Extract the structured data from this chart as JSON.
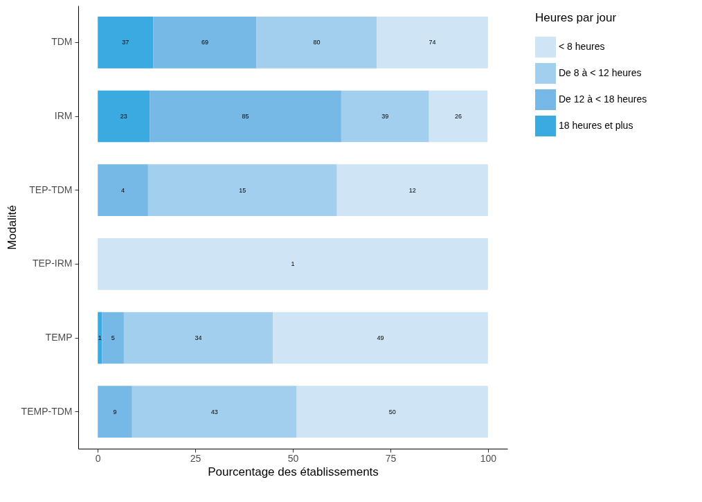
{
  "chart_data": {
    "type": "bar",
    "orientation": "horizontal",
    "stacked": true,
    "xlabel": "Pourcentage des établissements",
    "ylabel": "Modalité",
    "legend_title": "Heures par jour",
    "legend": "right",
    "grid": false,
    "categories": [
      "TDM",
      "IRM",
      "TEP-TDM",
      "TEP-IRM",
      "TEMP",
      "TEMP-TDM"
    ],
    "xlim": [
      -5,
      105
    ],
    "xticks": [
      0,
      25,
      50,
      75,
      100
    ],
    "series": [
      {
        "name": "18 heures et plus",
        "color": "#3aaae0",
        "values": [
          14.2,
          13.3,
          null,
          null,
          1.1,
          null
        ]
      },
      {
        "name": "De 12 à < 18 heures",
        "color": "#77b9e6",
        "values": [
          26.5,
          49.1,
          12.9,
          null,
          5.6,
          8.8
        ]
      },
      {
        "name": "De 8 à < 12 heures",
        "color": "#a3cfee",
        "values": [
          30.8,
          22.5,
          48.4,
          null,
          38.2,
          42.2
        ]
      },
      {
        "name": "< 8 heures",
        "color": "#cfe4f4",
        "values": [
          28.5,
          15.0,
          38.7,
          100,
          55.1,
          49.0
        ]
      }
    ],
    "annotations": [
      "37",
      "69",
      "80",
      "74",
      "23",
      "85",
      "39",
      "26",
      "4",
      "15",
      "12",
      "1",
      "1",
      "5",
      "34",
      "49",
      "9",
      "43",
      "50"
    ]
  }
}
